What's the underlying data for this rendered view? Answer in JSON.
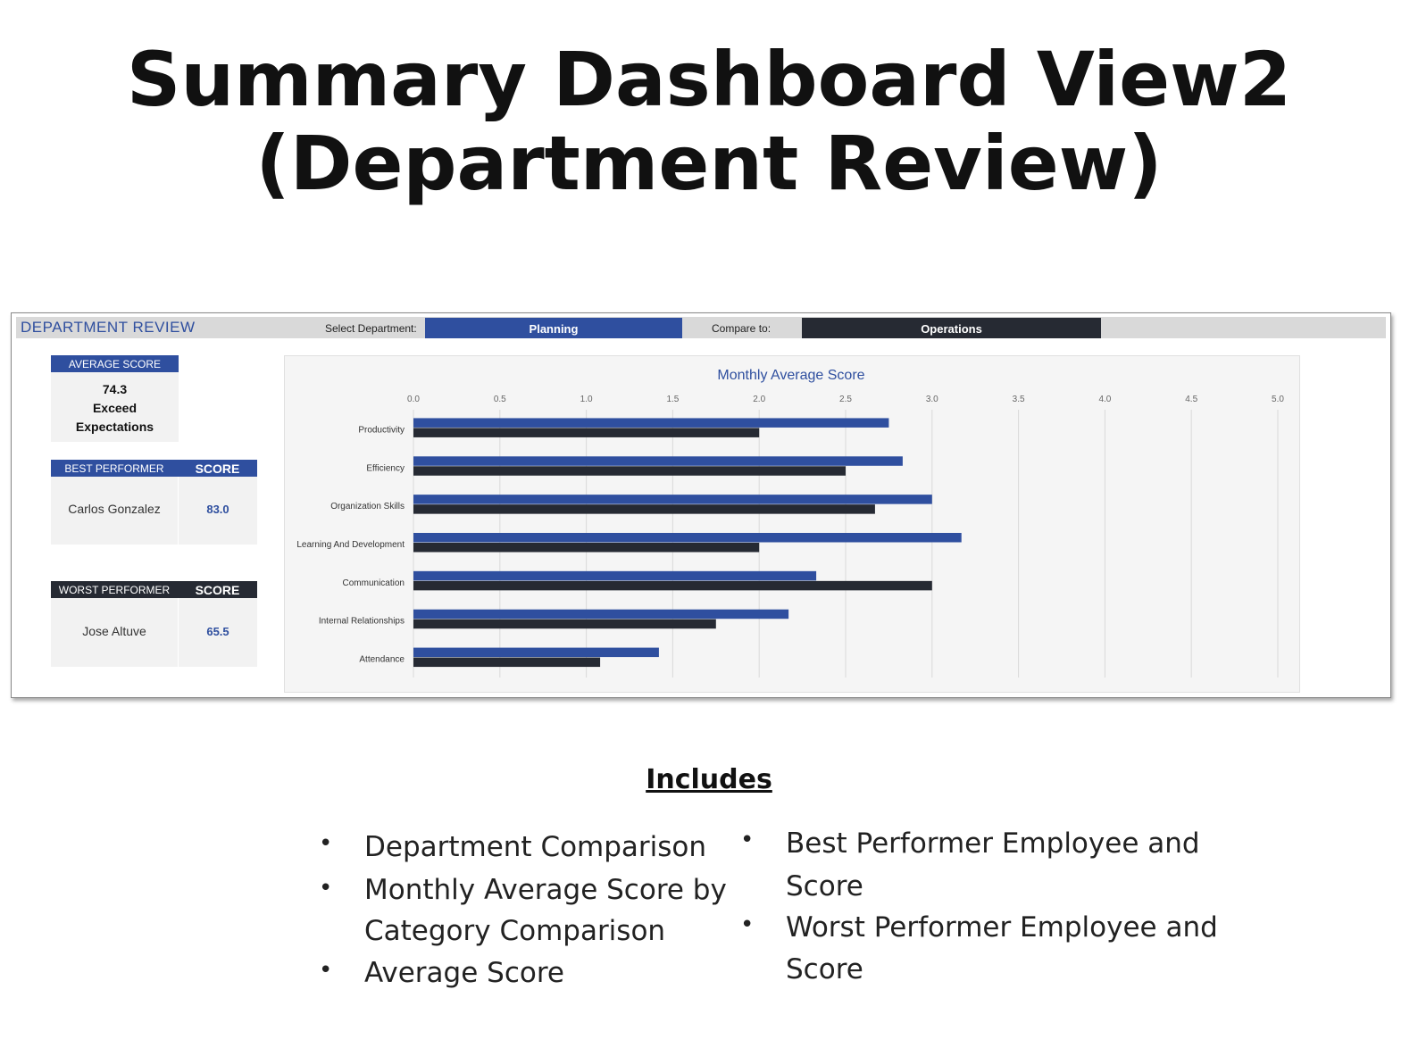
{
  "page": {
    "title_line1": "Summary Dashboard View2",
    "title_line2": "(Department Review)"
  },
  "header": {
    "title": "DEPARTMENT REVIEW",
    "select_label": "Select Department:",
    "select_value": "Planning",
    "compare_label": "Compare to:",
    "compare_value": "Operations"
  },
  "average": {
    "label": "AVERAGE SCORE",
    "value": "74.3",
    "rating_line1": "Exceed",
    "rating_line2": "Expectations"
  },
  "best": {
    "label": "BEST PERFORMER",
    "score_label": "SCORE",
    "name": "Carlos Gonzalez",
    "score": "83.0"
  },
  "worst": {
    "label": "WORST PERFORMER",
    "score_label": "SCORE",
    "name": "Jose Altuve",
    "score": "65.5"
  },
  "colors": {
    "planning": "#2f4f9f",
    "operations": "#262a33",
    "header_bg": "#d9d9d9",
    "title_blue": "#2f4f9f"
  },
  "chart_data": {
    "type": "bar",
    "orientation": "horizontal",
    "title": "Monthly Average Score",
    "categories": [
      "Productivity",
      "Efficiency",
      "Organization Skills",
      "Learning And Development",
      "Communication",
      "Internal Relationships",
      "Attendance"
    ],
    "series": [
      {
        "values": [
          2.75,
          2.83,
          3.0,
          3.17,
          2.33,
          2.17,
          1.42
        ]
      },
      {
        "values": [
          2.0,
          2.5,
          2.67,
          2.0,
          3.0,
          1.75,
          1.08
        ]
      }
    ],
    "xlim": [
      0,
      5
    ],
    "xticks": [
      "0.0",
      "0.5",
      "1.0",
      "1.5",
      "2.0",
      "2.5",
      "3.0",
      "3.5",
      "4.0",
      "4.5",
      "5.0"
    ],
    "grid": true,
    "legend": "none"
  },
  "includes": {
    "title": "Includes",
    "left_items": [
      "Department Comparison",
      "Monthly Average Score by Category Comparison",
      "Average Score"
    ],
    "right_items": [
      "Best Performer Employee and Score",
      "Worst Performer Employee and Score"
    ],
    "left_item2_line1": "Monthly Average Score by",
    "left_item2_line2": "Category Comparison",
    "right_item1_line1": "Best Performer Employee and",
    "right_item1_line2": "Score",
    "right_item2_line1": "Worst Performer Employee and",
    "right_item2_line2": "Score"
  }
}
